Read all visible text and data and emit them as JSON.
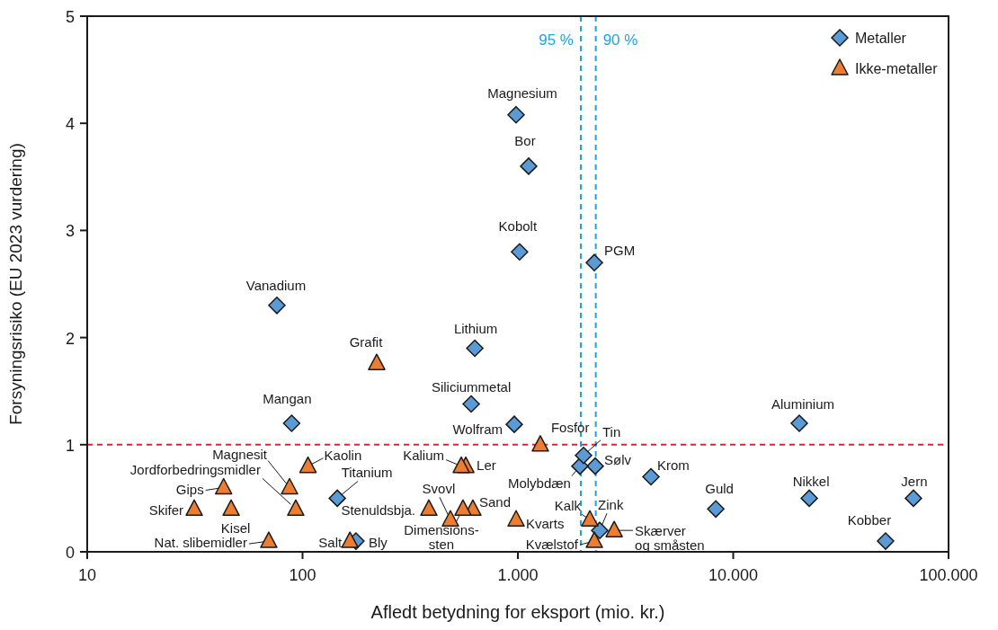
{
  "chart_data": {
    "type": "scatter",
    "xlabel": "Afledt betydning for eksport (mio. kr.)",
    "ylabel": "Forsyningsrisiko (EU 2023 vurdering)",
    "log": "x",
    "xlim": [
      10,
      100000
    ],
    "xticks": [
      10,
      100,
      {
        "value": 1000,
        "label": "1.000"
      },
      {
        "value": 10000,
        "label": "10.000"
      },
      {
        "value": 100000,
        "label": "100.000"
      }
    ],
    "ylim": [
      0,
      5
    ],
    "yticks": [
      0,
      1,
      2,
      3,
      4,
      5
    ],
    "grid": false,
    "legend": "top right",
    "series": [
      {
        "name": "Metaller",
        "color": "#5b9bd5",
        "marker": "diamond",
        "x": [
          981,
          1122,
          1018,
          2265,
          76,
          631,
          89,
          607,
          962,
          20270,
          2018,
          1941,
          2286,
          4150,
          145,
          8300,
          22550,
          68700,
          51000,
          177,
          2400
        ],
        "values": [
          4.08,
          3.6,
          2.8,
          2.7,
          2.3,
          1.9,
          1.2,
          1.38,
          1.19,
          1.2,
          0.9,
          0.8,
          0.8,
          0.7,
          0.5,
          0.4,
          0.5,
          0.5,
          0.1,
          0.1,
          0.2
        ]
      },
      {
        "name": "Ikke-metaller",
        "color": "#ed7d31",
        "marker": "triangle",
        "x": [
          221,
          1271,
          106,
          546,
          573,
          87,
          43,
          93,
          31.4,
          46.6,
          69.7,
          166,
          386,
          486,
          556,
          618,
          981,
          2158,
          2265,
          2800
        ],
        "values": [
          1.76,
          1.0,
          0.8,
          0.8,
          0.8,
          0.6,
          0.6,
          0.4,
          0.4,
          0.4,
          0.1,
          0.1,
          0.4,
          0.3,
          0.4,
          0.4,
          0.3,
          0.3,
          0.1,
          0.2
        ]
      }
    ],
    "ref_lines": [
      {
        "axis": "x",
        "value": 1960,
        "color": "#1aa3e8",
        "line_style": "dashed"
      },
      {
        "axis": "x",
        "value": 2300,
        "color": "#1aa3e8",
        "line_style": "dashed"
      },
      {
        "axis": "y",
        "value": 1,
        "color": "#e8222a",
        "line_style": "dashed"
      }
    ],
    "annotations": [
      {
        "text": "Magnesium",
        "x": 981,
        "y": 4.08
      },
      {
        "text": "Bor",
        "x": 1122,
        "y": 3.6
      },
      {
        "text": "Kobolt",
        "x": 1018,
        "y": 2.8
      },
      {
        "text": "PGM",
        "x": 2265,
        "y": 2.7
      },
      {
        "text": "Vanadium",
        "x": 76,
        "y": 2.3
      },
      {
        "text": "Lithium",
        "x": 631,
        "y": 1.9
      },
      {
        "text": "Mangan",
        "x": 89,
        "y": 1.2
      },
      {
        "text": "Siliciummetal",
        "x": 607,
        "y": 1.38
      },
      {
        "text": "Wolfram",
        "x": 962,
        "y": 1.19
      },
      {
        "text": "Aluminium",
        "x": 20270,
        "y": 1.2
      },
      {
        "text": "Tin",
        "x": 2018,
        "y": 0.9
      },
      {
        "text": "Molybdæn",
        "x": 1941,
        "y": 0.8
      },
      {
        "text": "Sølv",
        "x": 2286,
        "y": 0.8
      },
      {
        "text": "Krom",
        "x": 4150,
        "y": 0.7
      },
      {
        "text": "Titanium",
        "x": 145,
        "y": 0.5
      },
      {
        "text": "Guld",
        "x": 8300,
        "y": 0.4
      },
      {
        "text": "Nikkel",
        "x": 22550,
        "y": 0.5
      },
      {
        "text": "Jern",
        "x": 68700,
        "y": 0.5
      },
      {
        "text": "Kobber",
        "x": 51000,
        "y": 0.1
      },
      {
        "text": "Bly",
        "x": 177,
        "y": 0.1
      },
      {
        "text": "Zink",
        "x": 2400,
        "y": 0.2
      },
      {
        "text": "Grafit",
        "x": 221,
        "y": 1.76
      },
      {
        "text": "Fosfor",
        "x": 1271,
        "y": 1.0
      },
      {
        "text": "Kaolin",
        "x": 106,
        "y": 0.8
      },
      {
        "text": "Kalium",
        "x": 546,
        "y": 0.8
      },
      {
        "text": "Ler",
        "x": 573,
        "y": 0.8
      },
      {
        "text": "Magnesit",
        "x": 87,
        "y": 0.6
      },
      {
        "text": "Jordforbedringsmidler",
        "x": 93,
        "y": 0.4
      },
      {
        "text": "Gips",
        "x": 43,
        "y": 0.6
      },
      {
        "text": "Skifer",
        "x": 31.4,
        "y": 0.4
      },
      {
        "text": "Kisel",
        "x": 46.6,
        "y": 0.4
      },
      {
        "text": "Nat. slibemidler",
        "x": 69.7,
        "y": 0.1
      },
      {
        "text": "Salt",
        "x": 166,
        "y": 0.1
      },
      {
        "text": "Stenuldsbja.",
        "x": 386,
        "y": 0.4
      },
      {
        "text": "Svovl",
        "x": 486,
        "y": 0.3
      },
      {
        "text": "Dimensions-\nsten",
        "x": 556,
        "y": 0.4
      },
      {
        "text": "Sand",
        "x": 618,
        "y": 0.4
      },
      {
        "text": "Kvarts",
        "x": 981,
        "y": 0.3
      },
      {
        "text": "Kalk",
        "x": 2158,
        "y": 0.3
      },
      {
        "text": "Kvælstof",
        "x": 2265,
        "y": 0.1
      },
      {
        "text": "Skærver\nog småsten",
        "x": 2800,
        "y": 0.2
      },
      {
        "text": "95 %",
        "x": 1960,
        "y": 4.8
      },
      {
        "text": "90 %",
        "x": 2300,
        "y": 4.8
      }
    ]
  }
}
